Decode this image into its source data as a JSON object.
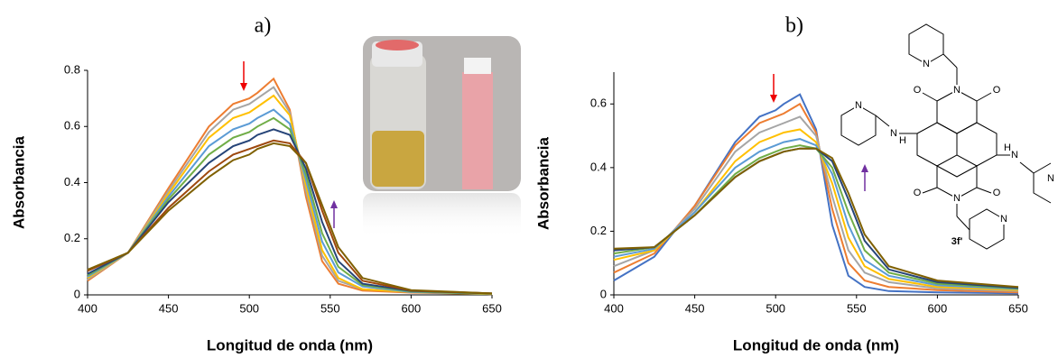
{
  "chart_data": [
    {
      "type": "line",
      "title": "a)",
      "x_label": "Longitud de onda (nm)",
      "y_label": "Absorbancia",
      "x": [
        400,
        425,
        450,
        475,
        490,
        500,
        505,
        515,
        525,
        535,
        545,
        555,
        570,
        600,
        650
      ],
      "xlim": [
        400,
        650
      ],
      "xticks": [
        400,
        450,
        500,
        550,
        600,
        650
      ],
      "ylim": [
        0,
        0.8
      ],
      "yticks": [
        0,
        0.2,
        0.4,
        0.6,
        0.8
      ],
      "series": [
        {
          "color": "#ed7d31",
          "values": [
            0.05,
            0.15,
            0.38,
            0.6,
            0.68,
            0.7,
            0.72,
            0.77,
            0.66,
            0.35,
            0.12,
            0.04,
            0.015,
            0.008,
            0.003
          ]
        },
        {
          "color": "#a5a5a5",
          "values": [
            0.055,
            0.15,
            0.37,
            0.58,
            0.66,
            0.68,
            0.7,
            0.74,
            0.65,
            0.37,
            0.14,
            0.05,
            0.02,
            0.01,
            0.003
          ]
        },
        {
          "color": "#ffc000",
          "values": [
            0.06,
            0.15,
            0.36,
            0.56,
            0.63,
            0.65,
            0.67,
            0.71,
            0.64,
            0.39,
            0.16,
            0.06,
            0.02,
            0.01,
            0.003
          ]
        },
        {
          "color": "#5b9bd5",
          "values": [
            0.065,
            0.15,
            0.35,
            0.53,
            0.59,
            0.61,
            0.63,
            0.66,
            0.61,
            0.41,
            0.19,
            0.08,
            0.03,
            0.01,
            0.004
          ]
        },
        {
          "color": "#70ad47",
          "values": [
            0.07,
            0.15,
            0.34,
            0.5,
            0.56,
            0.58,
            0.6,
            0.63,
            0.59,
            0.43,
            0.22,
            0.1,
            0.035,
            0.012,
            0.004
          ]
        },
        {
          "color": "#264478",
          "values": [
            0.075,
            0.15,
            0.33,
            0.47,
            0.53,
            0.55,
            0.57,
            0.59,
            0.57,
            0.45,
            0.26,
            0.12,
            0.04,
            0.014,
            0.005
          ]
        },
        {
          "color": "#9e480e",
          "values": [
            0.085,
            0.15,
            0.31,
            0.44,
            0.5,
            0.52,
            0.53,
            0.55,
            0.54,
            0.47,
            0.3,
            0.15,
            0.05,
            0.015,
            0.005
          ]
        },
        {
          "color": "#7f6000",
          "values": [
            0.09,
            0.15,
            0.3,
            0.42,
            0.48,
            0.5,
            0.52,
            0.54,
            0.53,
            0.47,
            0.32,
            0.17,
            0.06,
            0.017,
            0.005
          ]
        }
      ]
    },
    {
      "type": "line",
      "title": "b)",
      "x_label": "Longitud de onda (nm)",
      "y_label": "Absorbancia",
      "x": [
        400,
        425,
        450,
        475,
        490,
        500,
        505,
        515,
        525,
        535,
        545,
        555,
        570,
        600,
        650
      ],
      "xlim": [
        400,
        650
      ],
      "xticks": [
        400,
        450,
        500,
        550,
        600,
        650
      ],
      "ylim": [
        0,
        0.7
      ],
      "yticks": [
        0,
        0.2,
        0.4,
        0.6
      ],
      "structure_label": "3f'",
      "atoms": [
        "N",
        "O",
        "N",
        "O",
        "N",
        "N",
        "H",
        "H",
        "N",
        "O",
        "N",
        "O",
        "N",
        "N"
      ],
      "series": [
        {
          "color": "#4472c4",
          "values": [
            0.045,
            0.12,
            0.28,
            0.48,
            0.56,
            0.58,
            0.6,
            0.63,
            0.52,
            0.22,
            0.06,
            0.025,
            0.012,
            0.008,
            0.005
          ]
        },
        {
          "color": "#ed7d31",
          "values": [
            0.07,
            0.13,
            0.28,
            0.47,
            0.54,
            0.56,
            0.57,
            0.6,
            0.51,
            0.27,
            0.1,
            0.045,
            0.025,
            0.015,
            0.008
          ]
        },
        {
          "color": "#a5a5a5",
          "values": [
            0.09,
            0.14,
            0.27,
            0.45,
            0.51,
            0.53,
            0.54,
            0.56,
            0.5,
            0.31,
            0.14,
            0.07,
            0.04,
            0.02,
            0.012
          ]
        },
        {
          "color": "#ffc000",
          "values": [
            0.11,
            0.14,
            0.26,
            0.42,
            0.48,
            0.5,
            0.51,
            0.52,
            0.48,
            0.35,
            0.18,
            0.09,
            0.05,
            0.025,
            0.015
          ]
        },
        {
          "color": "#5b9bd5",
          "values": [
            0.12,
            0.145,
            0.26,
            0.4,
            0.45,
            0.47,
            0.48,
            0.49,
            0.47,
            0.38,
            0.22,
            0.11,
            0.06,
            0.03,
            0.018
          ]
        },
        {
          "color": "#70ad47",
          "values": [
            0.13,
            0.15,
            0.25,
            0.38,
            0.43,
            0.45,
            0.46,
            0.47,
            0.46,
            0.4,
            0.26,
            0.14,
            0.07,
            0.035,
            0.02
          ]
        },
        {
          "color": "#264478",
          "values": [
            0.14,
            0.15,
            0.25,
            0.37,
            0.42,
            0.44,
            0.45,
            0.46,
            0.46,
            0.42,
            0.3,
            0.17,
            0.08,
            0.04,
            0.022
          ]
        },
        {
          "color": "#7f6000",
          "values": [
            0.145,
            0.15,
            0.25,
            0.37,
            0.42,
            0.44,
            0.45,
            0.46,
            0.46,
            0.43,
            0.32,
            0.19,
            0.09,
            0.045,
            0.025
          ]
        }
      ]
    }
  ]
}
